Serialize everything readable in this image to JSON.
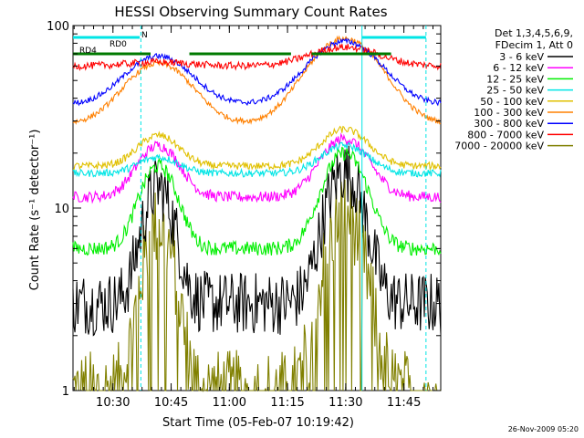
{
  "chart_data": {
    "type": "line",
    "title": "HESSI Observing Summary Count Rates",
    "xlabel": "Start Time (05-Feb-07 10:19:42)",
    "ylabel": "Count Rate (s⁻¹ detector⁻¹)",
    "footer": "26-Nov-2009 05:20",
    "x_range": [
      "10:19:42",
      "11:54:30"
    ],
    "y_range": [
      1,
      100
    ],
    "y_scale": "log",
    "grid": false,
    "legend_position": "right",
    "legend_header": [
      "Det 1,3,4,5,6,9,",
      "FDecim 1, Att 0"
    ],
    "x_ticks": [
      "10:30",
      "10:45",
      "11:00",
      "11:15",
      "11:30",
      "11:45"
    ],
    "x_tick_minutes": [
      10.3,
      25.3,
      40.3,
      55.3,
      70.3,
      85.3
    ],
    "y_ticks": [
      "1",
      "10",
      "100"
    ],
    "y_tick_values": [
      1,
      10,
      100
    ],
    "flags": [
      {
        "label": "RD0",
        "color": "#00e5e5"
      },
      {
        "label": "RD4",
        "color": "#007a00"
      },
      {
        "label": "N",
        "color": "#00e5e5"
      }
    ],
    "flag_intervals": {
      "RD0": [
        [
          0,
          8.4
        ],
        [
          74.5,
          91.0
        ]
      ],
      "N": [
        [
          0,
          17.2
        ]
      ],
      "RD4": [
        [
          0,
          20.0
        ],
        [
          30.0,
          56.2
        ],
        [
          61.5,
          82.0
        ]
      ]
    },
    "vertical_markers": [
      {
        "minute": 17.5,
        "color": "#00e5e5",
        "style": "dashed"
      },
      {
        "minute": 74.5,
        "color": "#00e5e5",
        "style": "solid"
      },
      {
        "minute": 91.0,
        "color": "#00e5e5",
        "style": "dashed"
      }
    ],
    "series": [
      {
        "name": "3 - 6 keV",
        "color": "#000000",
        "peaks": [
          [
            22,
            13.0,
            5.0
          ],
          [
            70,
            16.0,
            6.0
          ]
        ],
        "base": 3.0,
        "noise": 0.35
      },
      {
        "name": "6 - 12 keV",
        "color": "#ff00ff",
        "peaks": [
          [
            22,
            22.0,
            7.0
          ],
          [
            70,
            24.0,
            8.0
          ]
        ],
        "base": 11.5,
        "noise": 0.06
      },
      {
        "name": "12 - 25 keV",
        "color": "#00ee00",
        "peaks": [
          [
            22,
            17.0,
            6.0
          ],
          [
            70,
            20.0,
            7.0
          ]
        ],
        "base": 6.0,
        "noise": 0.08
      },
      {
        "name": "25 - 50 keV",
        "color": "#00e5e5",
        "peaks": [
          [
            22,
            19.0,
            7.0
          ],
          [
            70,
            22.0,
            8.0
          ]
        ],
        "base": 15.5,
        "noise": 0.04
      },
      {
        "name": "50 - 100 keV",
        "color": "#e0c000",
        "peaks": [
          [
            22,
            25.0,
            7.0
          ],
          [
            70,
            27.0,
            8.0
          ]
        ],
        "base": 17.0,
        "noise": 0.04
      },
      {
        "name": "100 - 300 keV",
        "color": "#ff8000",
        "peaks": [
          [
            22,
            62.0,
            11.0
          ],
          [
            70,
            85.0,
            12.0
          ]
        ],
        "base": 29.0,
        "noise": 0.03
      },
      {
        "name": "300 - 800 keV",
        "color": "#0000ff",
        "peaks": [
          [
            22,
            68.0,
            11.0
          ],
          [
            70,
            82.0,
            12.0
          ]
        ],
        "base": 37.0,
        "noise": 0.03
      },
      {
        "name": "800 - 7000 keV",
        "color": "#ff0000",
        "peaks": [
          [
            22,
            63.0,
            11.0
          ],
          [
            70,
            76.0,
            12.0
          ]
        ],
        "base": 60.0,
        "noise": 0.04
      },
      {
        "name": "7000 - 20000 keV",
        "color": "#808000",
        "peaks": [
          [
            22,
            8.0,
            5.0
          ],
          [
            70,
            9.5,
            6.0
          ]
        ],
        "base": 1.0,
        "noise": 0.45
      }
    ]
  }
}
